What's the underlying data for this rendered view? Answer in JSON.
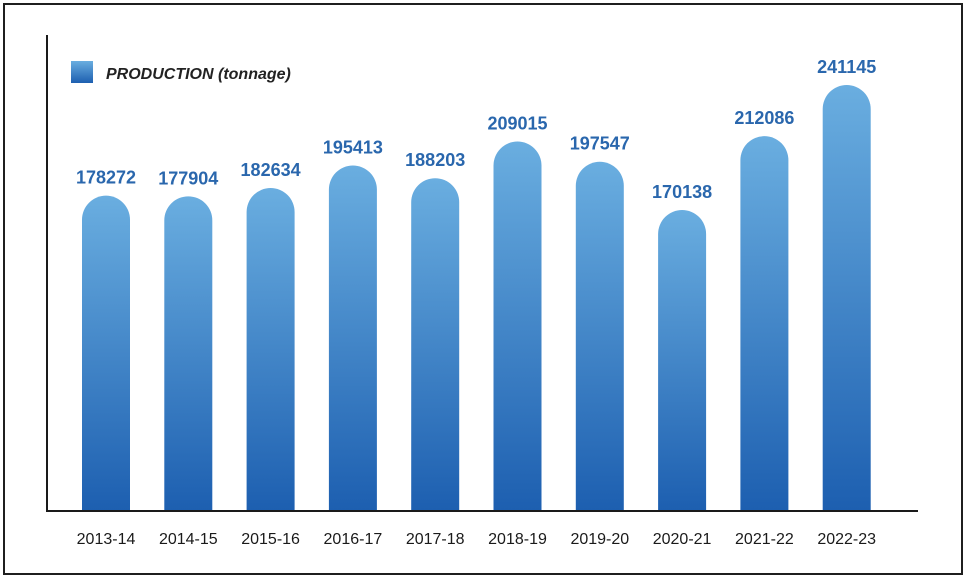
{
  "chart_data": {
    "type": "bar",
    "legend": "PRODUCTION (tonnage)",
    "categories": [
      "2013-14",
      "2014-15",
      "2015-16",
      "2016-17",
      "2017-18",
      "2018-19",
      "2019-20",
      "2020-21",
      "2021-22",
      "2022-23"
    ],
    "series": [
      {
        "name": "PRODUCTION (tonnage)",
        "values": [
          178272,
          177904,
          182634,
          195413,
          188203,
          209015,
          197547,
          170138,
          212086,
          241145
        ]
      }
    ],
    "value_labels": [
      "178272",
      "177904",
      "182634",
      "195413",
      "188203",
      "209015",
      "197547",
      "170138",
      "212086",
      "241145"
    ],
    "legend_position": "top-left",
    "grid": false,
    "colors": {
      "bar_top": "#6aaee0",
      "bar_bottom": "#1d5fb0",
      "label": "#2a67ad",
      "axis": "#1a1a1a"
    }
  }
}
